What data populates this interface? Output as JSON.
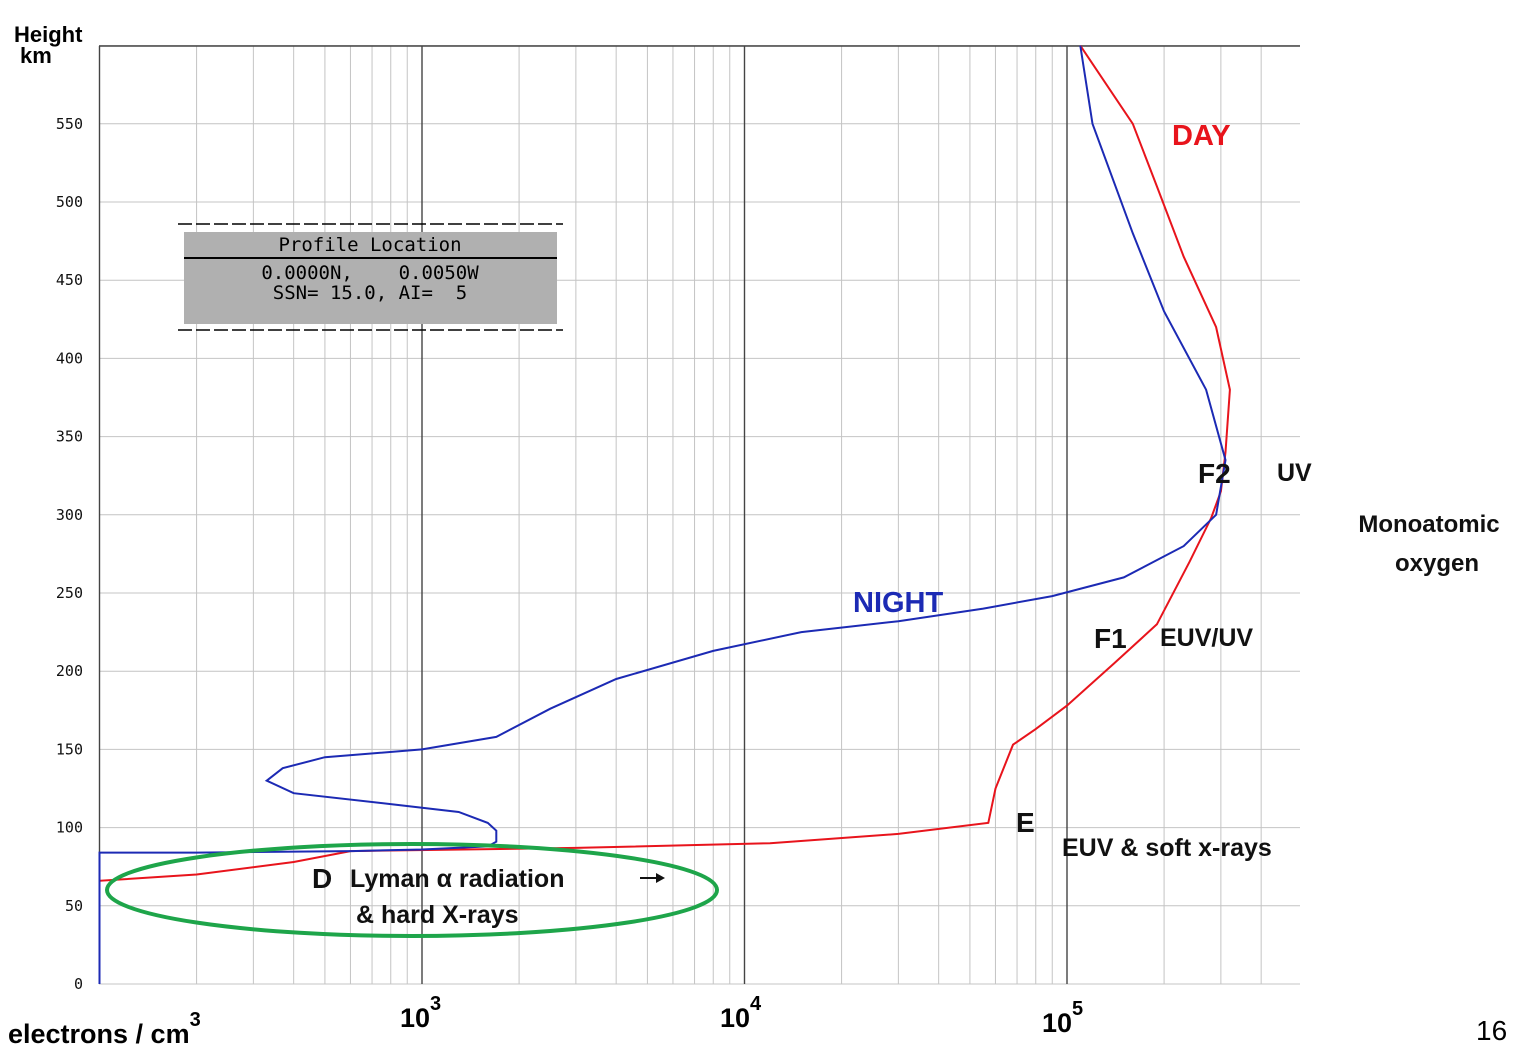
{
  "slide_number": "16",
  "chart_data": {
    "type": "line",
    "y_axis": {
      "title_line1": "Height",
      "title_line2": "km",
      "ticks": [
        0,
        50,
        100,
        150,
        200,
        250,
        300,
        350,
        400,
        450,
        500,
        550
      ],
      "tick_labels": [
        "0",
        "50",
        "100",
        "150",
        "200",
        "250",
        "300",
        "350",
        "400",
        "450",
        "500",
        "550"
      ],
      "range": [
        0,
        600
      ]
    },
    "x_axis": {
      "scale": "log",
      "label": "electrons / cm",
      "label_exponent": "3",
      "range": [
        100,
        400000
      ],
      "tick_labels": [
        {
          "value": 1000,
          "base": "10",
          "exp": "3"
        },
        {
          "value": 10000,
          "base": "10",
          "exp": "4"
        },
        {
          "value": 100000,
          "base": "10",
          "exp": "5"
        }
      ]
    },
    "grid": true,
    "series": [
      {
        "name": "DAY",
        "color": "#e8141c",
        "points": [
          [
            100,
            0
          ],
          [
            100,
            66
          ],
          [
            200,
            70
          ],
          [
            400,
            78
          ],
          [
            600,
            85
          ],
          [
            3000,
            87
          ],
          [
            12000,
            90
          ],
          [
            30000,
            96
          ],
          [
            57000,
            103
          ],
          [
            60000,
            125
          ],
          [
            68000,
            153
          ],
          [
            80000,
            163
          ],
          [
            100000,
            178
          ],
          [
            140000,
            205
          ],
          [
            190000,
            230
          ],
          [
            240000,
            270
          ],
          [
            280000,
            298
          ],
          [
            300000,
            315
          ],
          [
            310000,
            340
          ],
          [
            320000,
            380
          ],
          [
            290000,
            420
          ],
          [
            230000,
            465
          ],
          [
            190000,
            510
          ],
          [
            160000,
            550
          ],
          [
            110000,
            600
          ]
        ]
      },
      {
        "name": "NIGHT",
        "color": "#1c2ab4",
        "points": [
          [
            100,
            0
          ],
          [
            100,
            84
          ],
          [
            200,
            84
          ],
          [
            600,
            85
          ],
          [
            1000,
            86
          ],
          [
            1600,
            88
          ],
          [
            1700,
            91
          ],
          [
            1700,
            98
          ],
          [
            1600,
            103
          ],
          [
            1300,
            110
          ],
          [
            800,
            115
          ],
          [
            400,
            122
          ],
          [
            330,
            130
          ],
          [
            370,
            138
          ],
          [
            500,
            145
          ],
          [
            1000,
            150
          ],
          [
            1700,
            158
          ],
          [
            2500,
            176
          ],
          [
            4000,
            195
          ],
          [
            8000,
            213
          ],
          [
            15000,
            225
          ],
          [
            30000,
            232
          ],
          [
            55000,
            240
          ],
          [
            90000,
            248
          ],
          [
            150000,
            260
          ],
          [
            230000,
            280
          ],
          [
            290000,
            300
          ],
          [
            310000,
            335
          ],
          [
            270000,
            380
          ],
          [
            200000,
            430
          ],
          [
            160000,
            480
          ],
          [
            120000,
            550
          ],
          [
            110000,
            600
          ]
        ]
      }
    ],
    "annotations": {
      "day_label": "DAY",
      "night_label": "NIGHT",
      "f2_label": "F2",
      "uv_label": "UV",
      "monoatomic_line1": "Monoatomic",
      "monoatomic_line2": "oxygen",
      "f1_label": "F1",
      "euvuv_label": "EUV/UV",
      "e_label": "E",
      "euv_soft_label": "EUV & soft x-rays",
      "d_label": "D",
      "lyman_line1": "Lyman α radiation",
      "lyman_line2": "& hard X-rays"
    },
    "profile_box": {
      "title": "Profile Location",
      "line1": "0.0000N,    0.0050W",
      "line2": "SSN= 15.0, AI=  5"
    },
    "colors": {
      "grid": "#c4c4c4",
      "grid_decade": "#444444",
      "ellipse": "#1ea54a",
      "box_fill": "#b0b0b0"
    }
  }
}
